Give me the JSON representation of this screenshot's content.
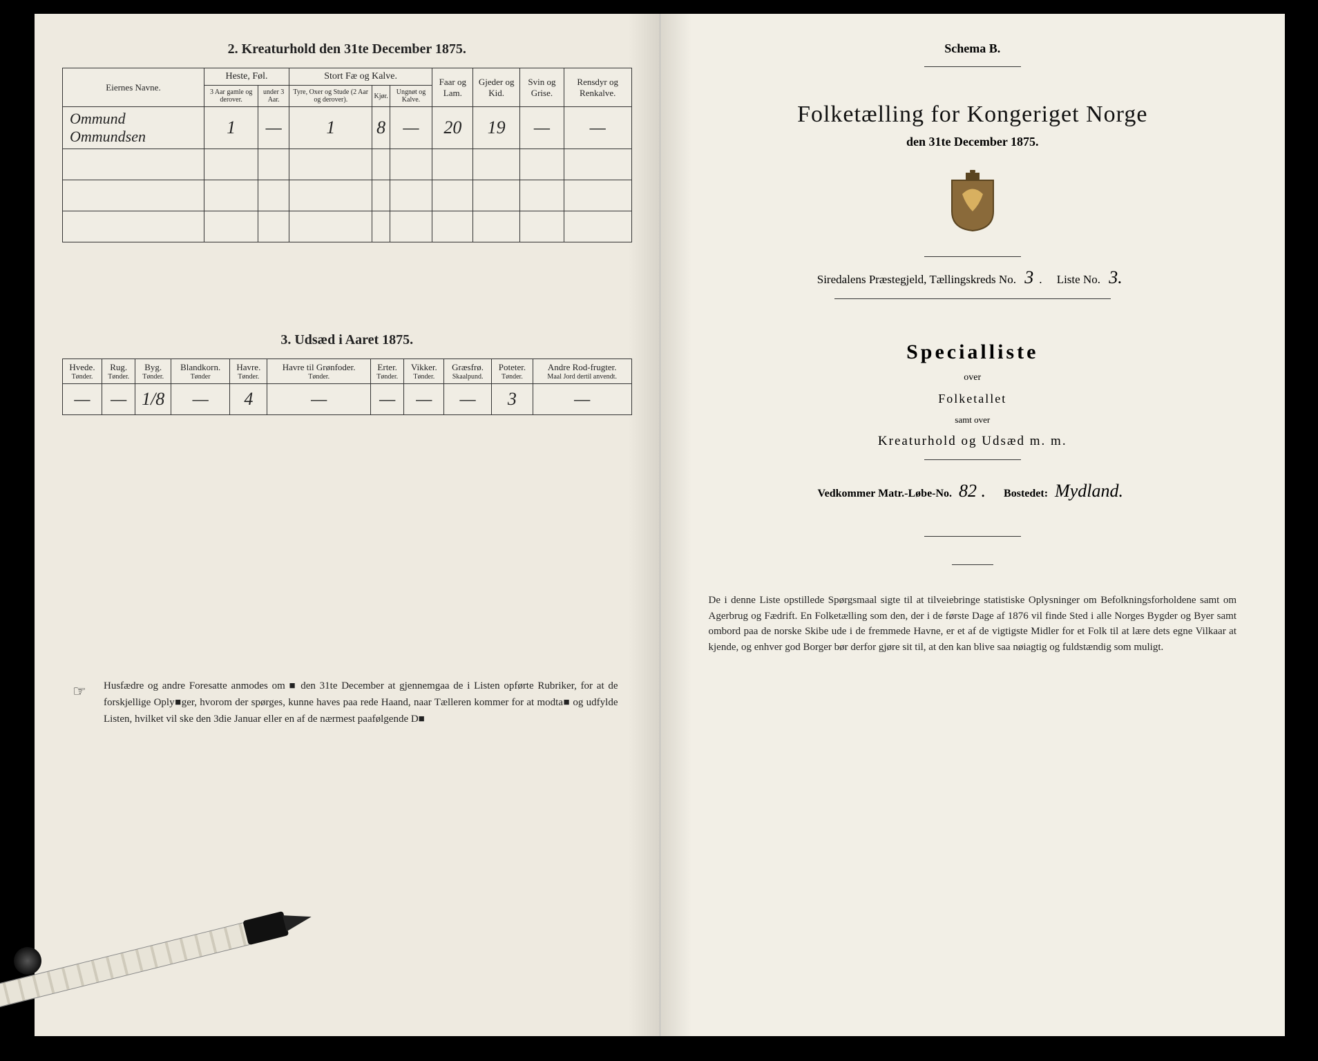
{
  "left": {
    "section2_title": "2.  Kreaturhold den 31te December 1875.",
    "section3_title": "3.  Udsæd i Aaret 1875.",
    "table2": {
      "col_owner": "Eiernes Navne.",
      "group_heste": "Heste, Føl.",
      "group_stort": "Stort Fæ og Kalve.",
      "col_h1": "3 Aar gamle og derover.",
      "col_h2": "under 3 Aar.",
      "col_s1": "Tyre, Oxer og Stude (2 Aar og derover).",
      "col_s2": "Kjør.",
      "col_s3": "Ungnøt og Kalve.",
      "col_faar": "Faar og Lam.",
      "col_gjeder": "Gjeder og Kid.",
      "col_svin": "Svin og Grise.",
      "col_rensdyr": "Rensdyr og Renkalve.",
      "row": {
        "name": "Ommund Ommundsen",
        "v": [
          "1",
          "—",
          "1",
          "8",
          "—",
          "20",
          "19",
          "—",
          "—"
        ]
      }
    },
    "table3": {
      "cols": [
        {
          "h": "Hvede.",
          "s": "Tønder."
        },
        {
          "h": "Rug.",
          "s": "Tønder."
        },
        {
          "h": "Byg.",
          "s": "Tønder."
        },
        {
          "h": "Blandkorn.",
          "s": "Tønder"
        },
        {
          "h": "Havre.",
          "s": "Tønder."
        },
        {
          "h": "Havre til Grønfoder.",
          "s": "Tønder."
        },
        {
          "h": "Erter.",
          "s": "Tønder."
        },
        {
          "h": "Vikker.",
          "s": "Tønder."
        },
        {
          "h": "Græsfrø.",
          "s": "Skaalpund."
        },
        {
          "h": "Poteter.",
          "s": "Tønder."
        },
        {
          "h": "Andre Rod-frugter.",
          "s": "Maal Jord dertil anvendt."
        }
      ],
      "row": [
        "—",
        "—",
        "1/8",
        "—",
        "4",
        "—",
        "—",
        "—",
        "—",
        "3",
        "—"
      ]
    },
    "footer": "Husfædre og andre Foresatte anmodes om ■ den 31te December at gjennemgaa de i Listen opførte Rubriker, for at de forskjellige Oply■ger, hvorom der spørges, kunne haves paa rede Haand, naar Tælleren kommer for at modta■ og udfylde Listen, hvilket vil ske den 3die Januar eller en af de nærmest paafølgende D■"
  },
  "right": {
    "schema": "Schema B.",
    "title": "Folketælling for Kongeriget Norge",
    "subtitle": "den 31te December 1875.",
    "prgjeld_label": "Siredalens Præstegjeld,  Tællingskreds No.",
    "kreds_no": "3",
    "liste_label": "Liste No.",
    "liste_no": "3.",
    "specialliste": "Specialliste",
    "over": "over",
    "folketallet": "Folketallet",
    "samt": "samt over",
    "kreatur": "Kreaturhold og Udsæd m. m.",
    "matr_label": "Vedkommer Matr.-Løbe-No.",
    "matr_no": "82 .",
    "bostedet_label": "Bostedet:",
    "bostedet": "Mydland.",
    "bodytext": "De i denne Liste opstillede Spørgsmaal sigte til at tilveiebringe statistiske Oplysninger om Befolkningsforholdene samt om Agerbrug og Fædrift.  En Folketælling som den, der i de første Dage af 1876 vil finde Sted i alle Norges Bygder og Byer samt ombord paa de norske Skibe ude i de fremmede Havne, er et af de vigtigste Midler for et Folk til at lære dets egne Vilkaar at kjende, og enhver god Borger bør derfor gjøre sit til, at den kan blive saa nøiagtig og fuldstændig som muligt."
  }
}
